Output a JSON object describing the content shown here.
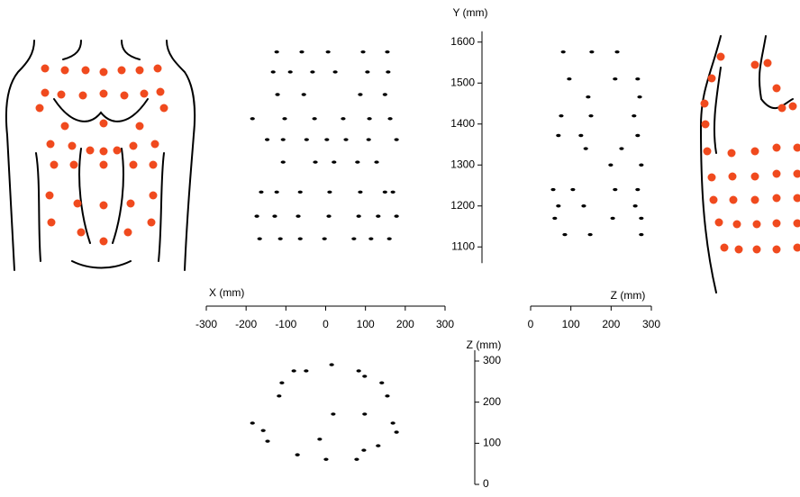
{
  "chart_data": [
    {
      "type": "scatter",
      "x_label": "X (mm)",
      "y_label": "Y (mm)",
      "xlim": [
        -300,
        300
      ],
      "xticks": [
        -300,
        -200,
        -100,
        0,
        100,
        200,
        300
      ],
      "ylim": [
        1050,
        1650
      ],
      "yticks": [
        1100,
        1200,
        1300,
        1400,
        1500,
        1600
      ],
      "color": "#000000",
      "x": [
        -123,
        -60,
        6,
        94,
        155,
        -132,
        -89,
        -33,
        24,
        105,
        157,
        -121,
        -55,
        87,
        149,
        -184,
        -103,
        -28,
        44,
        110,
        162,
        -147,
        -107,
        -48,
        3,
        51,
        108,
        178,
        -107,
        -26,
        21,
        80,
        128,
        -162,
        -123,
        -64,
        10,
        87,
        149,
        169,
        -173,
        -128,
        -69,
        8,
        83,
        132,
        178,
        -166,
        -114,
        -64,
        -3,
        71,
        114,
        160
      ],
      "y": [
        1576,
        1576,
        1576,
        1576,
        1576,
        1527,
        1527,
        1527,
        1527,
        1527,
        1527,
        1472,
        1472,
        1472,
        1472,
        1413,
        1413,
        1413,
        1413,
        1413,
        1413,
        1362,
        1362,
        1362,
        1362,
        1362,
        1362,
        1362,
        1307,
        1307,
        1307,
        1307,
        1307,
        1234,
        1234,
        1234,
        1234,
        1234,
        1234,
        1234,
        1175,
        1175,
        1175,
        1175,
        1175,
        1175,
        1175,
        1120,
        1120,
        1120,
        1120,
        1120,
        1120,
        1120
      ]
    },
    {
      "type": "scatter",
      "x_label": "Z (mm)",
      "xlim": [
        0,
        300
      ],
      "xticks": [
        0,
        100,
        200,
        300
      ],
      "ylim": [
        1050,
        1650
      ],
      "color": "#000000",
      "x": [
        81,
        152,
        215,
        96,
        210,
        266,
        143,
        271,
        76,
        150,
        257,
        69,
        125,
        266,
        137,
        226,
        199,
        275,
        56,
        105,
        210,
        266,
        69,
        132,
        260,
        60,
        204,
        275,
        85,
        148,
        275
      ],
      "y": [
        1576,
        1576,
        1576,
        1510,
        1510,
        1510,
        1466,
        1466,
        1420,
        1420,
        1420,
        1372,
        1372,
        1372,
        1340,
        1340,
        1300,
        1300,
        1240,
        1240,
        1240,
        1240,
        1200,
        1200,
        1200,
        1170,
        1170,
        1170,
        1130,
        1130,
        1130
      ]
    },
    {
      "type": "scatter",
      "y_label": "Z (mm)",
      "xlim": [
        -300,
        300
      ],
      "ylim": [
        0,
        300
      ],
      "yticks": [
        0,
        100,
        200,
        300
      ],
      "color": "#000000",
      "x": [
        -110,
        -49,
        15,
        98,
        155,
        -117,
        -184,
        -146,
        -71,
        1,
        96,
        169,
        178,
        -157,
        -80,
        83,
        141,
        19,
        -15,
        98,
        78,
        132
      ],
      "y": [
        247,
        276,
        291,
        263,
        215,
        215,
        149,
        105,
        72,
        61,
        83,
        149,
        127,
        131,
        276,
        276,
        247,
        171,
        110,
        171,
        61,
        94
      ]
    }
  ]
}
